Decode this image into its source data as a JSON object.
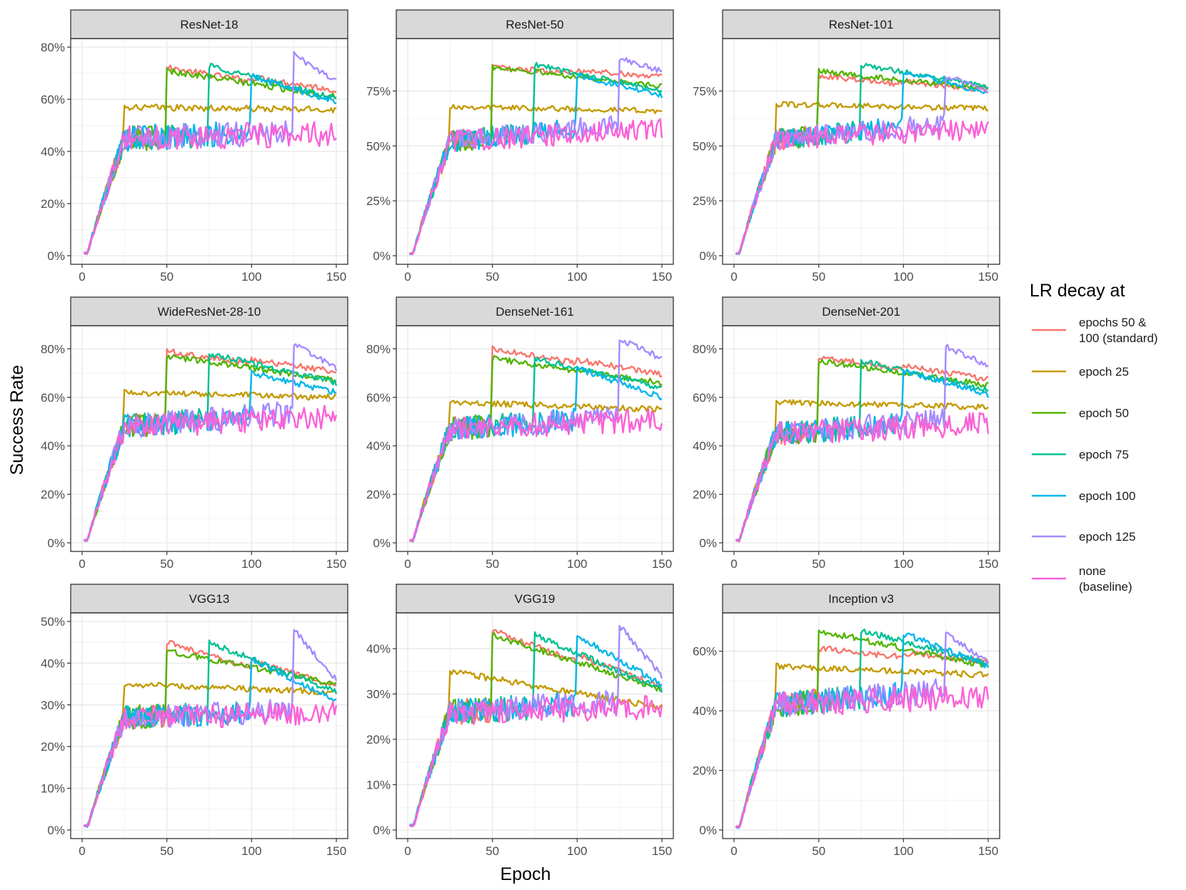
{
  "chart_data": {
    "type": "line",
    "facet_layout": "3x3 grid",
    "xlabel": "Epoch",
    "ylabel": "Success Rate",
    "xlim": [
      0,
      150
    ],
    "x_ticks": [
      0,
      50,
      100,
      150
    ],
    "legend": {
      "title": "LR decay at",
      "position": "right",
      "entries": [
        {
          "key": "s50_100",
          "lines": [
            "epochs 50 &",
            "100 (standard)"
          ],
          "color": "#F8766D"
        },
        {
          "key": "e25",
          "lines": [
            "epoch 25"
          ],
          "color": "#C49A00"
        },
        {
          "key": "e50",
          "lines": [
            "epoch 50"
          ],
          "color": "#53B400"
        },
        {
          "key": "e75",
          "lines": [
            "epoch 75"
          ],
          "color": "#00C094"
        },
        {
          "key": "e100",
          "lines": [
            "epoch 100"
          ],
          "color": "#00B6EB"
        },
        {
          "key": "e125",
          "lines": [
            "epoch 125"
          ],
          "color": "#A58AFF"
        },
        {
          "key": "none",
          "lines": [
            "none",
            "(baseline)"
          ],
          "color": "#FB61D7"
        }
      ]
    },
    "panels": [
      {
        "title": "ResNet-18",
        "ylim": [
          0,
          0.8
        ],
        "yticks": [
          0,
          0.2,
          0.4,
          0.6,
          0.8
        ],
        "ytick_labels": [
          "0%",
          "20%",
          "40%",
          "60%",
          "80%"
        ],
        "levels": {
          "base": 0.45,
          "growth_end": 0.48,
          "none_end": 0.47,
          "spread": 0.07,
          "s50_100": {
            "peak": 0.72,
            "end": 0.62
          },
          "e25": {
            "peak": 0.57,
            "end": 0.56
          },
          "e50": {
            "peak": 0.71,
            "end": 0.61
          },
          "e75": {
            "peak": 0.73,
            "end": 0.6
          },
          "e100": {
            "peak": 0.69,
            "end": 0.59
          },
          "e125": {
            "peak": 0.77,
            "end": 0.67
          }
        }
      },
      {
        "title": "ResNet-50",
        "ylim": [
          0,
          0.95
        ],
        "yticks": [
          0,
          0.25,
          0.5,
          0.75
        ],
        "ytick_labels": [
          "0%",
          "25%",
          "50%",
          "75%"
        ],
        "levels": {
          "base": 0.52,
          "growth_end": 0.62,
          "none_end": 0.58,
          "spread": 0.07,
          "s50_100": {
            "peak": 0.86,
            "end": 0.8
          },
          "e25": {
            "peak": 0.68,
            "end": 0.66
          },
          "e50": {
            "peak": 0.86,
            "end": 0.77
          },
          "e75": {
            "peak": 0.87,
            "end": 0.75
          },
          "e100": {
            "peak": 0.82,
            "end": 0.73
          },
          "e125": {
            "peak": 0.9,
            "end": 0.84
          }
        }
      },
      {
        "title": "ResNet-101",
        "ylim": [
          0,
          0.95
        ],
        "yticks": [
          0,
          0.25,
          0.5,
          0.75
        ],
        "ytick_labels": [
          "0%",
          "25%",
          "50%",
          "75%"
        ],
        "levels": {
          "base": 0.53,
          "growth_end": 0.62,
          "none_end": 0.58,
          "spread": 0.07,
          "s50_100": {
            "peak": 0.82,
            "end": 0.74
          },
          "e25": {
            "peak": 0.69,
            "end": 0.67
          },
          "e50": {
            "peak": 0.84,
            "end": 0.76
          },
          "e75": {
            "peak": 0.87,
            "end": 0.77
          },
          "e100": {
            "peak": 0.84,
            "end": 0.74
          },
          "e125": {
            "peak": 0.82,
            "end": 0.75
          }
        }
      },
      {
        "title": "WideResNet-28-10",
        "ylim": [
          0,
          0.86
        ],
        "yticks": [
          0,
          0.2,
          0.4,
          0.6,
          0.8
        ],
        "ytick_labels": [
          "0%",
          "20%",
          "40%",
          "60%",
          "80%"
        ],
        "levels": {
          "base": 0.48,
          "growth_end": 0.55,
          "none_end": 0.52,
          "spread": 0.07,
          "s50_100": {
            "peak": 0.79,
            "end": 0.69
          },
          "e25": {
            "peak": 0.62,
            "end": 0.6
          },
          "e50": {
            "peak": 0.77,
            "end": 0.67
          },
          "e75": {
            "peak": 0.78,
            "end": 0.66
          },
          "e100": {
            "peak": 0.7,
            "end": 0.62
          },
          "e125": {
            "peak": 0.82,
            "end": 0.72
          }
        }
      },
      {
        "title": "DenseNet-161",
        "ylim": [
          0,
          0.86
        ],
        "yticks": [
          0,
          0.2,
          0.4,
          0.6,
          0.8
        ],
        "ytick_labels": [
          "0%",
          "20%",
          "40%",
          "60%",
          "80%"
        ],
        "levels": {
          "base": 0.47,
          "growth_end": 0.53,
          "none_end": 0.51,
          "spread": 0.07,
          "s50_100": {
            "peak": 0.8,
            "end": 0.68
          },
          "e25": {
            "peak": 0.58,
            "end": 0.55
          },
          "e50": {
            "peak": 0.76,
            "end": 0.66
          },
          "e75": {
            "peak": 0.76,
            "end": 0.64
          },
          "e100": {
            "peak": 0.72,
            "end": 0.6
          },
          "e125": {
            "peak": 0.84,
            "end": 0.76
          }
        }
      },
      {
        "title": "DenseNet-201",
        "ylim": [
          0,
          0.86
        ],
        "yticks": [
          0,
          0.2,
          0.4,
          0.6,
          0.8
        ],
        "ytick_labels": [
          "0%",
          "20%",
          "40%",
          "60%",
          "80%"
        ],
        "levels": {
          "base": 0.45,
          "growth_end": 0.52,
          "none_end": 0.49,
          "spread": 0.07,
          "s50_100": {
            "peak": 0.77,
            "end": 0.66
          },
          "e25": {
            "peak": 0.58,
            "end": 0.56
          },
          "e50": {
            "peak": 0.75,
            "end": 0.65
          },
          "e75": {
            "peak": 0.75,
            "end": 0.63
          },
          "e100": {
            "peak": 0.71,
            "end": 0.61
          },
          "e125": {
            "peak": 0.81,
            "end": 0.73
          }
        }
      },
      {
        "title": "VGG13",
        "ylim": [
          0,
          0.5
        ],
        "yticks": [
          0,
          0.1,
          0.2,
          0.3,
          0.4,
          0.5
        ],
        "ytick_labels": [
          "0%",
          "10%",
          "20%",
          "30%",
          "40%",
          "50%"
        ],
        "levels": {
          "base": 0.27,
          "growth_end": 0.29,
          "none_end": 0.28,
          "spread": 0.04,
          "s50_100": {
            "peak": 0.45,
            "end": 0.33
          },
          "e25": {
            "peak": 0.35,
            "end": 0.33
          },
          "e50": {
            "peak": 0.43,
            "end": 0.35
          },
          "e75": {
            "peak": 0.45,
            "end": 0.33
          },
          "e100": {
            "peak": 0.41,
            "end": 0.31
          },
          "e125": {
            "peak": 0.48,
            "end": 0.36
          }
        }
      },
      {
        "title": "VGG19",
        "ylim": [
          0,
          0.46
        ],
        "yticks": [
          0,
          0.1,
          0.2,
          0.3,
          0.4
        ],
        "ytick_labels": [
          "0%",
          "10%",
          "20%",
          "30%",
          "40%"
        ],
        "levels": {
          "base": 0.26,
          "growth_end": 0.29,
          "none_end": 0.27,
          "spread": 0.04,
          "s50_100": {
            "peak": 0.44,
            "end": 0.3
          },
          "e25": {
            "peak": 0.35,
            "end": 0.27
          },
          "e50": {
            "peak": 0.43,
            "end": 0.31
          },
          "e75": {
            "peak": 0.43,
            "end": 0.31
          },
          "e100": {
            "peak": 0.43,
            "end": 0.32
          },
          "e125": {
            "peak": 0.45,
            "end": 0.34
          }
        }
      },
      {
        "title": "Inception v3",
        "ylim": [
          0,
          0.7
        ],
        "yticks": [
          0,
          0.2,
          0.4,
          0.6
        ],
        "ytick_labels": [
          "0%",
          "20%",
          "40%",
          "60%"
        ],
        "levels": {
          "base": 0.42,
          "growth_end": 0.48,
          "none_end": 0.45,
          "spread": 0.06,
          "s50_100": {
            "peak": 0.61,
            "end": 0.55
          },
          "e25": {
            "peak": 0.55,
            "end": 0.52
          },
          "e50": {
            "peak": 0.67,
            "end": 0.55
          },
          "e75": {
            "peak": 0.67,
            "end": 0.56
          },
          "e100": {
            "peak": 0.66,
            "end": 0.55
          },
          "e125": {
            "peak": 0.66,
            "end": 0.56
          }
        }
      }
    ]
  }
}
